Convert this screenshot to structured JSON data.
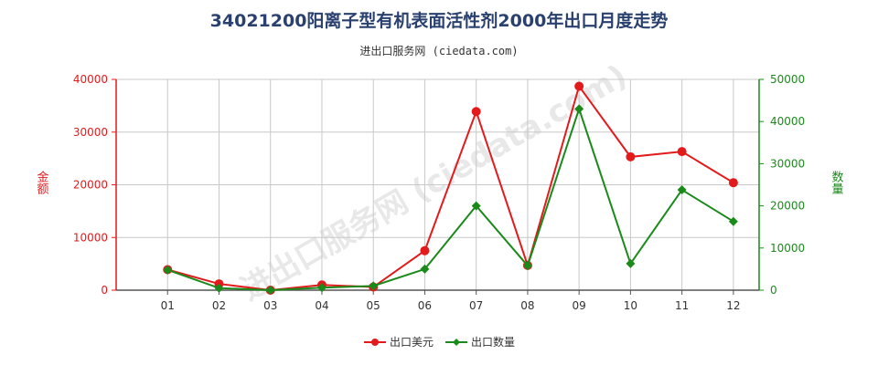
{
  "title": "34021200阳离子型有机表面活性剂2000年出口月度走势",
  "source": "进出口服务网 (ciedata.com)",
  "watermark": "进出口服务网 (ciedata.com)",
  "colors": {
    "left_axis": "#e31a1c",
    "right_axis": "#1a8a1a",
    "series_value": "#e31a1c",
    "series_qty": "#1a8a1a",
    "grid": "#c8c8c8"
  },
  "chart_data": {
    "type": "line",
    "categories": [
      "01",
      "02",
      "03",
      "04",
      "05",
      "06",
      "07",
      "08",
      "09",
      "10",
      "11",
      "12"
    ],
    "ylabel_left": "金额",
    "ylabel_right": "数量",
    "ylim_left": [
      0,
      40000
    ],
    "ylim_right": [
      0,
      50000
    ],
    "yticks_left": [
      "0",
      "10000",
      "20000",
      "30000",
      "40000"
    ],
    "yticks_right": [
      "0",
      "10000",
      "20000",
      "30000",
      "40000",
      "50000"
    ],
    "grid": true,
    "legend_position": "bottom",
    "series": [
      {
        "name": "出口美元",
        "axis": "left",
        "marker": "circle",
        "values": [
          3900,
          1200,
          0,
          1000,
          600,
          7500,
          33900,
          4700,
          38700,
          25300,
          26300,
          20400
        ]
      },
      {
        "name": "出口数量",
        "axis": "right",
        "marker": "diamond",
        "values": [
          4800,
          500,
          0,
          600,
          1000,
          5000,
          20000,
          5800,
          43000,
          6300,
          23800,
          16300
        ]
      }
    ]
  }
}
